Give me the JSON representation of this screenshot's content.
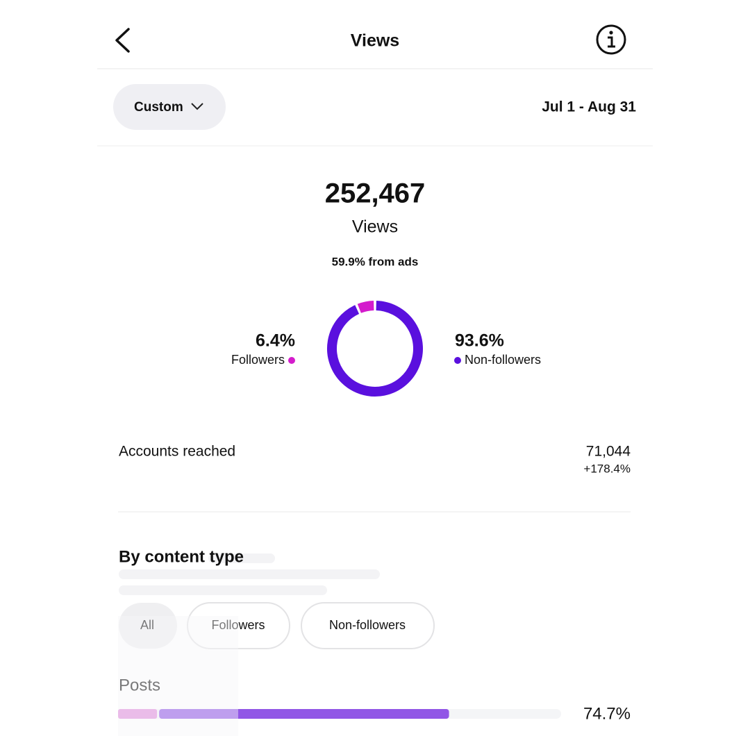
{
  "header": {
    "title": "Views"
  },
  "filter": {
    "period": "Custom",
    "date_range": "Jul 1 - Aug 31"
  },
  "summary": {
    "total": "252,467",
    "label": "Views",
    "ads_note": "59.9% from ads"
  },
  "chart_data": {
    "type": "donut",
    "categories": [
      "Followers",
      "Non-followers"
    ],
    "values": [
      6.4,
      93.6
    ],
    "value_labels": [
      "6.4%",
      "93.6%"
    ],
    "colors": [
      "#d41ccc",
      "#5a10de"
    ]
  },
  "accounts_reached": {
    "label": "Accounts reached",
    "value": "71,044",
    "change": "+178.4%"
  },
  "content_type": {
    "title": "By content type",
    "filters": [
      "All",
      "Followers",
      "Non-followers"
    ],
    "rows": [
      {
        "label": "Posts",
        "followers": 8.8,
        "non_followers": 65.9,
        "total": 74.7,
        "total_label": "74.7%",
        "colors": [
          "#e18ddc",
          "#9156e6"
        ]
      }
    ]
  }
}
